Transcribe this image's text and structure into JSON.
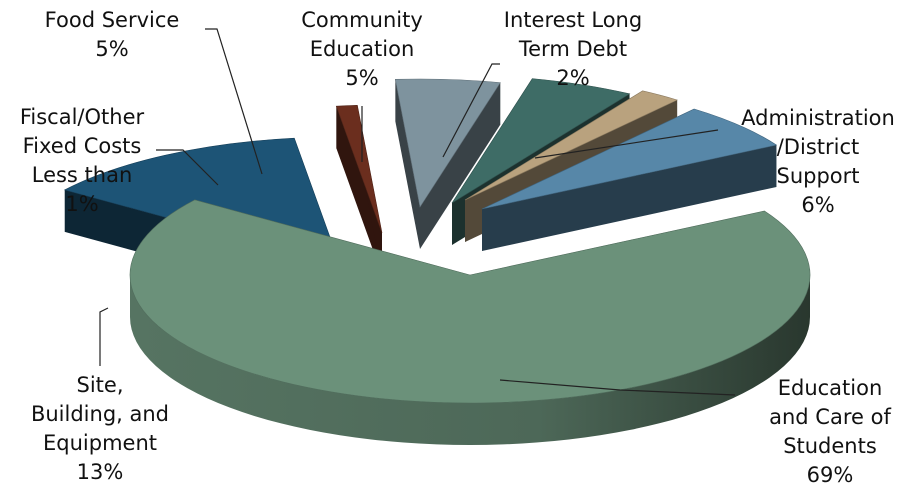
{
  "chart_data": {
    "type": "pie",
    "style": "3d-exploded",
    "slices": [
      {
        "label_lines": [
          "Education",
          "and Care of",
          "Students"
        ],
        "value": 69,
        "value_text": "69%",
        "color": "#6b917a"
      },
      {
        "label_lines": [
          "Site,",
          "Building, and",
          "Equipment"
        ],
        "value": 13,
        "value_text": "13%",
        "color": "#1d5476"
      },
      {
        "label_lines": [
          "Fiscal/Other",
          "Fixed Costs",
          "Less than"
        ],
        "value": 1,
        "value_text": "1%",
        "color": "#6b2e1e"
      },
      {
        "label_lines": [
          "Food Service"
        ],
        "value": 5,
        "value_text": "5%",
        "color": "#7e939e"
      },
      {
        "label_lines": [
          "Community",
          "Education"
        ],
        "value": 5,
        "value_text": "5%",
        "color": "#3e6c66"
      },
      {
        "label_lines": [
          "Interest Long",
          "Term Debt"
        ],
        "value": 2,
        "value_text": "2%",
        "color": "#b9a27e"
      },
      {
        "label_lines": [
          "Administration",
          "/District",
          "Support"
        ],
        "value": 6,
        "value_text": "6%",
        "color": "#5787a8"
      }
    ]
  }
}
